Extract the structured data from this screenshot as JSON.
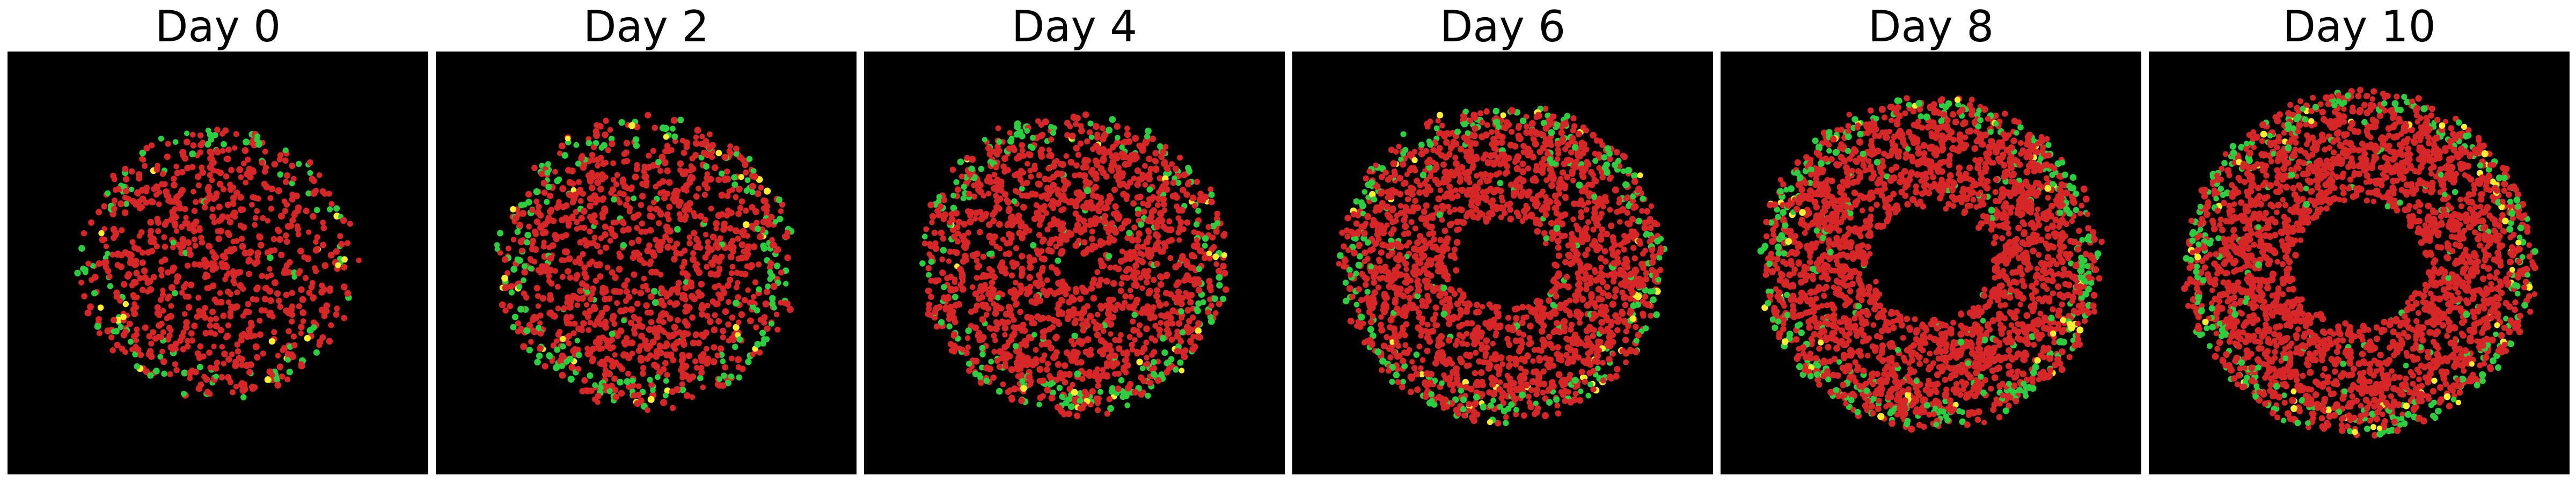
{
  "colors": {
    "background": "#000000",
    "red_cell": "#d62728",
    "green_cell": "#2ecc40",
    "yellow_cell": "#ffee33"
  },
  "panels": [
    {
      "title": "Day 0",
      "morphology": "filled-disc",
      "relative_radius": 0.6,
      "relative_hole": 0.0,
      "cell_count": 900
    },
    {
      "title": "Day 2",
      "morphology": "filled-disc",
      "relative_radius": 0.68,
      "relative_hole": 0.0,
      "cell_count": 1300
    },
    {
      "title": "Day 4",
      "morphology": "disc-with-small-void",
      "relative_radius": 0.72,
      "relative_hole": 0.12,
      "cell_count": 1700
    },
    {
      "title": "Day 6",
      "morphology": "ring",
      "relative_radius": 0.78,
      "relative_hole": 0.3,
      "cell_count": 2100
    },
    {
      "title": "Day 8",
      "morphology": "ring",
      "relative_radius": 0.84,
      "relative_hole": 0.36,
      "cell_count": 2500
    },
    {
      "title": "Day 10",
      "morphology": "ring",
      "relative_radius": 0.88,
      "relative_hole": 0.38,
      "cell_count": 2700
    }
  ]
}
